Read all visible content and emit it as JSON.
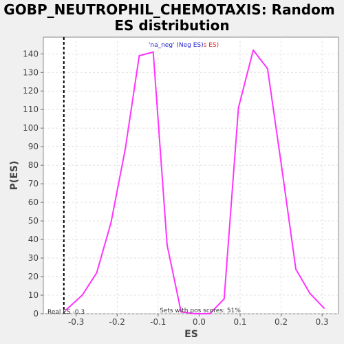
{
  "chart_data": {
    "type": "line",
    "title_lines": [
      "GOBP_NEUTROPHIL_CHEMOTAXIS: Random",
      "ES distribution"
    ],
    "xlabel": "ES",
    "ylabel": "P(ES)",
    "xlim": [
      -0.38,
      0.34
    ],
    "ylim": [
      0,
      149
    ],
    "xticks": [
      -0.3,
      -0.2,
      -0.1,
      0.0,
      0.1,
      0.2,
      0.3
    ],
    "xtick_labels": [
      "-0.3",
      "-0.2",
      "-0.1",
      "0.0",
      "0.1",
      "0.2",
      "0.3"
    ],
    "yticks": [
      0,
      10,
      20,
      30,
      40,
      50,
      60,
      70,
      80,
      90,
      100,
      110,
      120,
      130,
      140
    ],
    "ytick_labels": [
      "0",
      "10",
      "20",
      "30",
      "40",
      "50",
      "60",
      "70",
      "80",
      "90",
      "100",
      "110",
      "120",
      "130",
      "140"
    ],
    "grid": true,
    "series": [
      {
        "color": "#ff33ff",
        "x": [
          -0.325,
          -0.285,
          -0.25,
          -0.215,
          -0.18,
          -0.146,
          -0.112,
          -0.078,
          -0.044,
          -0.01,
          0.026,
          0.061,
          0.096,
          0.132,
          0.167,
          0.202,
          0.236,
          0.27,
          0.305
        ],
        "values": [
          2,
          10,
          22,
          49,
          89,
          139,
          141,
          37,
          1,
          0,
          0,
          8,
          111,
          142,
          132,
          78,
          24,
          11,
          3
        ]
      }
    ],
    "real_es": {
      "x": -0.33,
      "color": "#000000",
      "label": "Real ES -0.3"
    },
    "legend": {
      "placement": "top-center",
      "neg_text": "'na_neg' (Neg ES)",
      "neg_color": "#2222cc",
      "pos_text": "s ES)",
      "pos_color": "#dd2222"
    },
    "annotation": "Sets with pos scores: 51%",
    "colors": {
      "background": "#f0f0f0",
      "plot_background": "#ffffff",
      "line": "#ff33ff",
      "grid": "#d8d8d8"
    }
  }
}
